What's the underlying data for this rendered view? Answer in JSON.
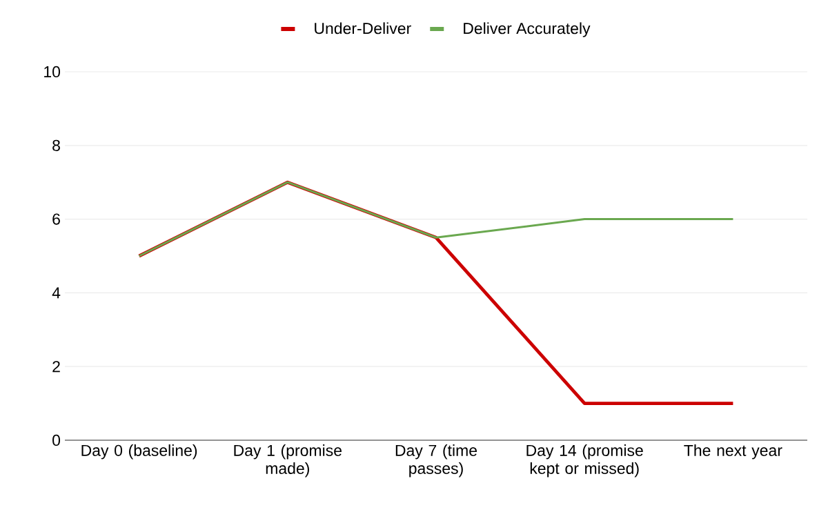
{
  "chart_data": {
    "type": "line",
    "categories": [
      "Day 0 (baseline)",
      "Day 1 (promise made)",
      "Day 7 (time passes)",
      "Day 14 (promise kept or missed)",
      "The next year"
    ],
    "series": [
      {
        "name": "Under-Deliver",
        "color": "#cc0000",
        "values": [
          5,
          7,
          5.5,
          1,
          1
        ]
      },
      {
        "name": "Deliver Accurately",
        "color": "#6aa84f",
        "values": [
          5,
          7,
          5.5,
          6,
          6
        ]
      }
    ],
    "ylim": [
      0,
      10
    ],
    "yticks": [
      0,
      2,
      4,
      6,
      8,
      10
    ],
    "grid": "y",
    "legend": "top",
    "marker": "none",
    "line_style": "solid"
  }
}
